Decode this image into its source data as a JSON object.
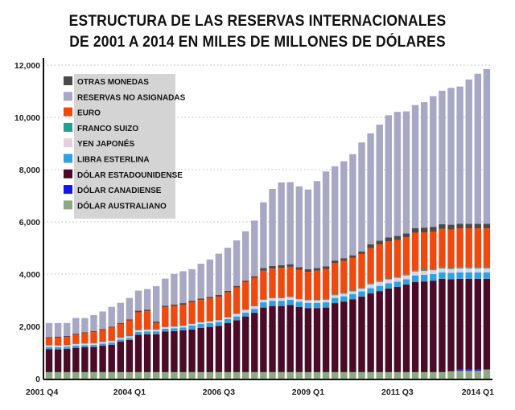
{
  "chart_data": {
    "type": "bar",
    "stacked": true,
    "title": [
      "ESTRUCTURA DE LAS RESERVAS INTERNACIONALES",
      "DE 2001 A 2014 EN MILES DE MILLONES DE DÓLARES"
    ],
    "xlabel": "",
    "ylabel": "",
    "ylim": [
      0,
      12000
    ],
    "grid": true,
    "legend_position": "top-left",
    "y_ticks": [
      {
        "value": 0,
        "label": "0"
      },
      {
        "value": 2000,
        "label": "2,000"
      },
      {
        "value": 4000,
        "label": "4,000"
      },
      {
        "value": 6000,
        "label": "6,000"
      },
      {
        "value": 8000,
        "label": "8,000"
      },
      {
        "value": 10000,
        "label": "10,000"
      },
      {
        "value": 12000,
        "label": "12,000"
      }
    ],
    "x_ticks": [
      {
        "index": 0,
        "label": "2001 Q4"
      },
      {
        "index": 9,
        "label": "2004 Q1"
      },
      {
        "index": 19,
        "label": "2006 Q3"
      },
      {
        "index": 29,
        "label": "2009 Q1"
      },
      {
        "index": 39,
        "label": "2011 Q3"
      },
      {
        "index": 49,
        "label": "2014 Q1"
      }
    ],
    "n_periods": 50,
    "legend_order": [
      "otras",
      "reservas",
      "euro",
      "franco",
      "yen",
      "libra",
      "usd",
      "cad",
      "aud"
    ],
    "series": [
      {
        "key": "aud",
        "name": "DÓLAR AUSTRALIANO",
        "color": "#8fa884",
        "values": [
          250,
          250,
          250,
          250,
          250,
          250,
          250,
          250,
          250,
          250,
          250,
          250,
          250,
          250,
          250,
          250,
          250,
          250,
          250,
          250,
          250,
          250,
          250,
          250,
          250,
          250,
          250,
          250,
          250,
          250,
          250,
          250,
          250,
          250,
          250,
          250,
          250,
          250,
          250,
          250,
          250,
          250,
          250,
          250,
          250,
          280,
          300,
          300,
          300,
          350
        ]
      },
      {
        "key": "cad",
        "name": "DÓLAR CANADIENSE",
        "color": "#1414ee",
        "values": [
          0,
          0,
          0,
          0,
          0,
          0,
          0,
          0,
          0,
          0,
          0,
          0,
          0,
          0,
          0,
          0,
          0,
          0,
          0,
          0,
          0,
          0,
          0,
          0,
          0,
          0,
          0,
          0,
          0,
          0,
          0,
          0,
          0,
          0,
          0,
          0,
          0,
          0,
          0,
          0,
          0,
          0,
          0,
          0,
          0,
          0,
          60,
          60,
          60,
          0
        ]
      },
      {
        "key": "usd",
        "name": "DÓLAR ESTADOUNIDENSE",
        "color": "#4a0a28",
        "values": [
          880,
          870,
          890,
          930,
          950,
          960,
          1010,
          1050,
          1170,
          1230,
          1430,
          1450,
          1450,
          1550,
          1570,
          1600,
          1630,
          1690,
          1730,
          1770,
          1880,
          1980,
          2130,
          2270,
          2470,
          2530,
          2530,
          2570,
          2490,
          2450,
          2450,
          2470,
          2640,
          2700,
          2790,
          2890,
          3010,
          3100,
          3200,
          3260,
          3350,
          3450,
          3470,
          3500,
          3570,
          3520,
          3460,
          3460,
          3460,
          3470
        ]
      },
      {
        "key": "libra",
        "name": "LIBRA ESTERLINA",
        "color": "#30a0e0",
        "values": [
          80,
          80,
          80,
          80,
          80,
          80,
          80,
          80,
          80,
          80,
          110,
          110,
          110,
          110,
          110,
          110,
          150,
          150,
          150,
          150,
          150,
          150,
          150,
          150,
          200,
          200,
          200,
          200,
          200,
          200,
          200,
          200,
          200,
          200,
          200,
          200,
          200,
          200,
          200,
          200,
          200,
          250,
          250,
          250,
          250,
          250,
          250,
          250,
          250,
          250
        ]
      },
      {
        "key": "yen",
        "name": "YEN JAPONÉS",
        "color": "#e2d0da",
        "values": [
          60,
          60,
          60,
          60,
          60,
          60,
          60,
          60,
          60,
          60,
          60,
          60,
          60,
          60,
          60,
          60,
          60,
          60,
          60,
          60,
          60,
          100,
          100,
          100,
          100,
          100,
          100,
          100,
          100,
          100,
          100,
          100,
          100,
          100,
          100,
          100,
          150,
          150,
          150,
          150,
          150,
          150,
          150,
          150,
          150,
          150,
          150,
          150,
          150,
          150
        ]
      },
      {
        "key": "franco",
        "name": "FRANCO SUIZO",
        "color": "#20a090",
        "values": [
          10,
          10,
          10,
          10,
          10,
          10,
          10,
          10,
          10,
          10,
          10,
          10,
          10,
          10,
          10,
          10,
          10,
          10,
          10,
          10,
          10,
          10,
          10,
          10,
          10,
          10,
          10,
          10,
          10,
          10,
          30,
          30,
          30,
          30,
          30,
          30,
          30,
          30,
          30,
          30,
          30,
          30,
          30,
          30,
          30,
          30,
          30,
          30,
          30,
          30
        ]
      },
      {
        "key": "euro",
        "name": "EURO",
        "color": "#ee4a10",
        "values": [
          270,
          300,
          300,
          350,
          380,
          420,
          450,
          500,
          520,
          600,
          680,
          700,
          250,
          750,
          780,
          800,
          820,
          850,
          870,
          900,
          950,
          1000,
          1050,
          1080,
          1100,
          1120,
          1150,
          1150,
          1120,
          1080,
          1100,
          1150,
          1200,
          1230,
          1250,
          1300,
          1350,
          1400,
          1420,
          1420,
          1430,
          1450,
          1450,
          1450,
          1480,
          1480,
          1500,
          1500,
          1500,
          1500
        ]
      },
      {
        "key": "otras",
        "name": "OTRAS MONEDAS",
        "color": "#4a4a4a",
        "values": [
          40,
          40,
          40,
          40,
          40,
          40,
          40,
          40,
          40,
          40,
          60,
          60,
          60,
          60,
          60,
          60,
          60,
          60,
          60,
          60,
          60,
          60,
          60,
          60,
          100,
          100,
          100,
          100,
          100,
          100,
          100,
          100,
          100,
          100,
          100,
          100,
          150,
          150,
          150,
          150,
          150,
          180,
          180,
          180,
          180,
          180,
          180,
          180,
          180,
          180
        ]
      },
      {
        "key": "reservas",
        "name": "RESERVAS NO ASIGNADAS",
        "color": "#a6a8c4",
        "values": [
          540,
          520,
          500,
          600,
          550,
          610,
          670,
          760,
          770,
          820,
          770,
          790,
          1350,
          1040,
          1170,
          1220,
          1210,
          1330,
          1430,
          1580,
          1650,
          1740,
          1890,
          2130,
          2520,
          2950,
          3170,
          3140,
          3090,
          3050,
          3330,
          3630,
          3610,
          3710,
          3870,
          4170,
          4250,
          4440,
          4680,
          4750,
          4670,
          4710,
          4800,
          5000,
          5110,
          5240,
          5250,
          5520,
          5740,
          5920
        ]
      }
    ]
  }
}
